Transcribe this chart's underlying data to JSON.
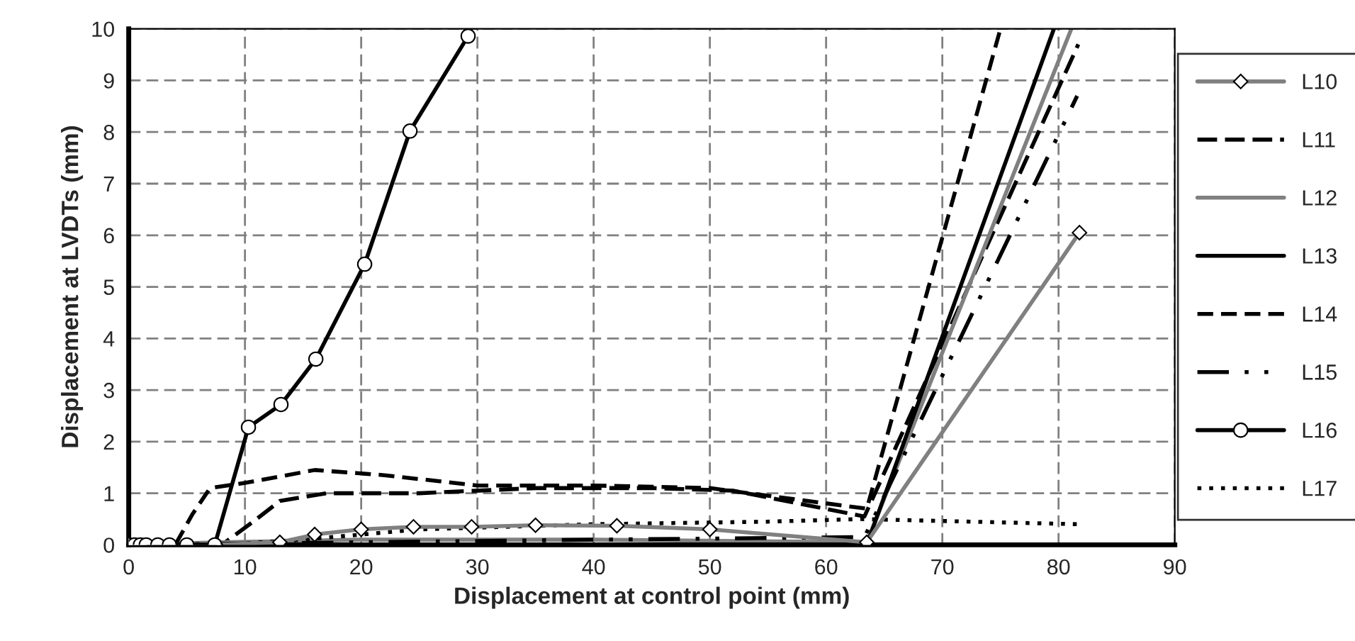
{
  "chart_data": {
    "type": "line",
    "xlabel": "Displacement at control point (mm)",
    "ylabel": "Displacement at LVDTs (mm)",
    "xlim": [
      0,
      90
    ],
    "xticks": [
      0,
      10,
      20,
      30,
      40,
      50,
      60,
      70,
      80,
      90
    ],
    "ylim": [
      0,
      10
    ],
    "yticks": [
      0,
      1,
      2,
      3,
      4,
      5,
      6,
      7,
      8,
      9,
      10
    ],
    "grid": true,
    "legend": "right",
    "series": [
      {
        "name": "L10",
        "color": "#808080",
        "marker": "diamond",
        "line_style": "solid",
        "x": [
          0,
          7.5,
          13,
          16,
          20,
          24.5,
          29.5,
          35,
          42,
          50,
          63.5,
          81.8
        ],
        "values": [
          0,
          0,
          0.05,
          0.2,
          0.3,
          0.35,
          0.35,
          0.38,
          0.37,
          0.3,
          0.05,
          6.05
        ]
      },
      {
        "name": "L11",
        "color": "#000000",
        "line_style": "longdash",
        "x": [
          0,
          8,
          11,
          13,
          17,
          25,
          35,
          45,
          52,
          63.3,
          81.7
        ],
        "values": [
          0,
          0,
          0.5,
          0.85,
          1.0,
          1.0,
          1.1,
          1.1,
          1.05,
          0.55,
          9.7
        ]
      },
      {
        "name": "L12",
        "color": "#808080",
        "line_style": "solid",
        "x": [
          0,
          8,
          20,
          40,
          63.5,
          81.1
        ],
        "values": [
          0,
          0.05,
          0.1,
          0.1,
          0.05,
          10
        ]
      },
      {
        "name": "L13",
        "color": "#000000",
        "line_style": "solid",
        "x": [
          0,
          20,
          40,
          63.5,
          79.6
        ],
        "values": [
          0,
          0,
          0,
          0,
          10
        ]
      },
      {
        "name": "L14",
        "color": "#000000",
        "line_style": "dashed",
        "x": [
          0,
          4,
          5.5,
          7,
          10,
          16,
          22,
          30,
          40,
          50,
          63.5,
          75
        ],
        "values": [
          0,
          0,
          0.6,
          1.1,
          1.2,
          1.45,
          1.35,
          1.15,
          1.15,
          1.1,
          0.7,
          10
        ]
      },
      {
        "name": "L15",
        "color": "#000000",
        "line_style": "dashdotdot",
        "x": [
          0,
          20,
          40,
          63.3,
          81.6
        ],
        "values": [
          0,
          0.05,
          0.1,
          0.15,
          8.7
        ]
      },
      {
        "name": "L16",
        "color": "#000000",
        "marker": "circle",
        "line_style": "solid",
        "x": [
          0,
          0.5,
          1,
          1.5,
          2.5,
          3.5,
          5,
          7.4,
          10.3,
          13.1,
          16.1,
          20.3,
          24.2,
          29.2
        ],
        "values": [
          0,
          0,
          0,
          0,
          0,
          0,
          0,
          0,
          2.28,
          2.72,
          3.6,
          5.44,
          8.02,
          9.86
        ]
      },
      {
        "name": "L17",
        "color": "#000000",
        "line_style": "dotted",
        "x": [
          0,
          8,
          15,
          25,
          40,
          55,
          63,
          81.7
        ],
        "values": [
          0,
          0,
          0.1,
          0.3,
          0.4,
          0.45,
          0.5,
          0.4
        ]
      }
    ]
  }
}
